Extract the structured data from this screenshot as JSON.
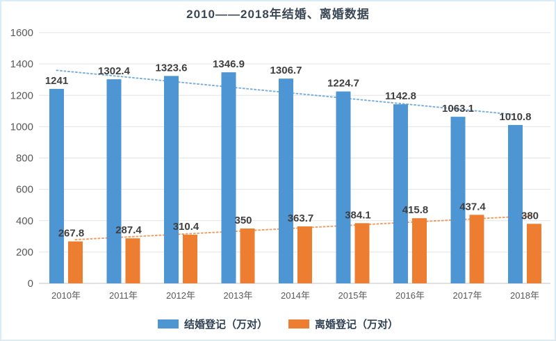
{
  "title": "2010——2018年结婚、离婚数据",
  "chart_data": {
    "type": "bar",
    "title": "2010——2018年结婚、离婚数据",
    "categories": [
      "2010年",
      "2011年",
      "2012年",
      "2013年",
      "2014年",
      "2015年",
      "2016年",
      "2017年",
      "2018年"
    ],
    "series": [
      {
        "name": "结婚登记（万对）",
        "color": "#4e95d3",
        "values": [
          1241,
          1302.4,
          1323.6,
          1346.9,
          1306.7,
          1224.7,
          1142.8,
          1063.1,
          1010.8
        ],
        "labels": [
          "1241",
          "1302.4",
          "1323.6",
          "1346.9",
          "1306.7",
          "1224.7",
          "1142.8",
          "1063.1",
          "1010.8"
        ]
      },
      {
        "name": "离婚登记（万对）",
        "color": "#ed7d31",
        "values": [
          267.8,
          287.4,
          310.4,
          350,
          363.7,
          384.1,
          415.8,
          437.4,
          380
        ],
        "labels": [
          "267.8",
          "287.4",
          "310.4",
          "350",
          "363.7",
          "384.1",
          "415.8",
          "437.4",
          "380"
        ]
      }
    ],
    "ylim": [
      0,
      1600
    ],
    "ytick_step": 200,
    "yticks": [
      0,
      200,
      400,
      600,
      800,
      1000,
      1200,
      1400,
      1600
    ],
    "grid": true,
    "trendlines": [
      {
        "series": "结婚登记（万对）",
        "style": "dotted"
      },
      {
        "series": "离婚登记（万对）",
        "style": "dotted"
      }
    ],
    "legend_position": "bottom"
  },
  "colors": {
    "grid": "#e3e3e3",
    "axis_line": "#c2c2c2",
    "axis_text": "#595959",
    "value_label": "#3f3f3f",
    "title": "#3a4756",
    "frame": "#d9ecf8"
  }
}
